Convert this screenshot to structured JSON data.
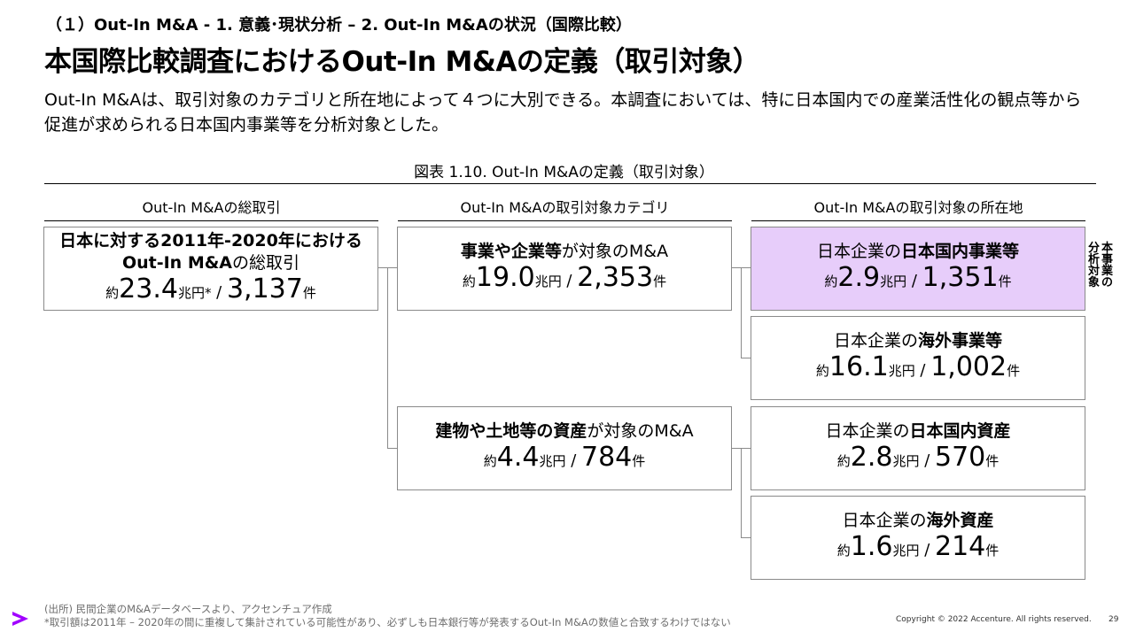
{
  "header": {
    "section": "（１）Out-In M&A - 1. 意義･現状分析 – 2. Out-In M&Aの状況（国際比較）",
    "title": "本国際比較調査におけるOut-In M&Aの定義（取引対象）",
    "lead": "Out-In M&Aは、取引対象のカテゴリと所在地によって４つに大別できる。本調査においては、特に日本国内での産業活性化の観点等から促進が求められる日本国内事業等を分析対象とした。"
  },
  "figure": {
    "title": "図表 1.10. Out-In M&Aの定義（取引対象）",
    "columns": [
      "Out-In M&Aの総取引",
      "Out-In M&Aの取引対象カテゴリ",
      "Out-In M&Aの取引対象の所在地"
    ],
    "total": {
      "line1": "日本に対する2011年-2020年における",
      "line2_bold": "Out-In M&A",
      "line2_rest": "の総取引",
      "prefix": "約",
      "amount": "23.4",
      "unit": "兆円*",
      "sep": " / ",
      "count": "3,137",
      "count_unit": "件"
    },
    "categories": [
      {
        "bold": "事業や企業等",
        "rest": "が対象のM&A",
        "prefix": "約",
        "amount": "19.0",
        "unit": "兆円",
        "sep": " / ",
        "count": "2,353",
        "count_unit": "件"
      },
      {
        "bold": "建物や土地等の資産",
        "rest": "が対象のM&A",
        "prefix": "約",
        "amount": "4.4",
        "unit": "兆円",
        "sep": " / ",
        "count": "784",
        "count_unit": "件"
      }
    ],
    "locations": [
      {
        "pre": "日本企業の",
        "bold": "日本国内事業等",
        "prefix": "約",
        "amount": "2.9",
        "unit": "兆円",
        "sep": " / ",
        "count": "1,351",
        "count_unit": "件",
        "highlight": true
      },
      {
        "pre": "日本企業の",
        "bold": "海外事業等",
        "prefix": "約",
        "amount": "16.1",
        "unit": "兆円",
        "sep": " / ",
        "count": "1,002",
        "count_unit": "件",
        "highlight": false
      },
      {
        "pre": "日本企業の",
        "bold": "日本国内資産",
        "prefix": "約",
        "amount": "2.8",
        "unit": "兆円",
        "sep": " / ",
        "count": "570",
        "count_unit": "件",
        "highlight": false
      },
      {
        "pre": "日本企業の",
        "bold": "海外資産",
        "prefix": "約",
        "amount": "1.6",
        "unit": "兆円",
        "sep": " / ",
        "count": "214",
        "count_unit": "件",
        "highlight": false
      }
    ],
    "side_note_col1": "本事業の",
    "side_note_col2": "分析対象",
    "highlight_color": "#e7cdfa"
  },
  "footer": {
    "source": "(出所) 民間企業のM&Aデータベースより、アクセンチュア作成",
    "note": "*取引額は2011年 – 2020年の間に重複して集計されている可能性があり、必ずしも日本銀行等が発表するOut-In M&Aの数値と合致するわけではない",
    "copyright": "Copyright © 2022 Accenture. All rights reserved.",
    "page": "29",
    "logo_color": "#a100ff"
  }
}
